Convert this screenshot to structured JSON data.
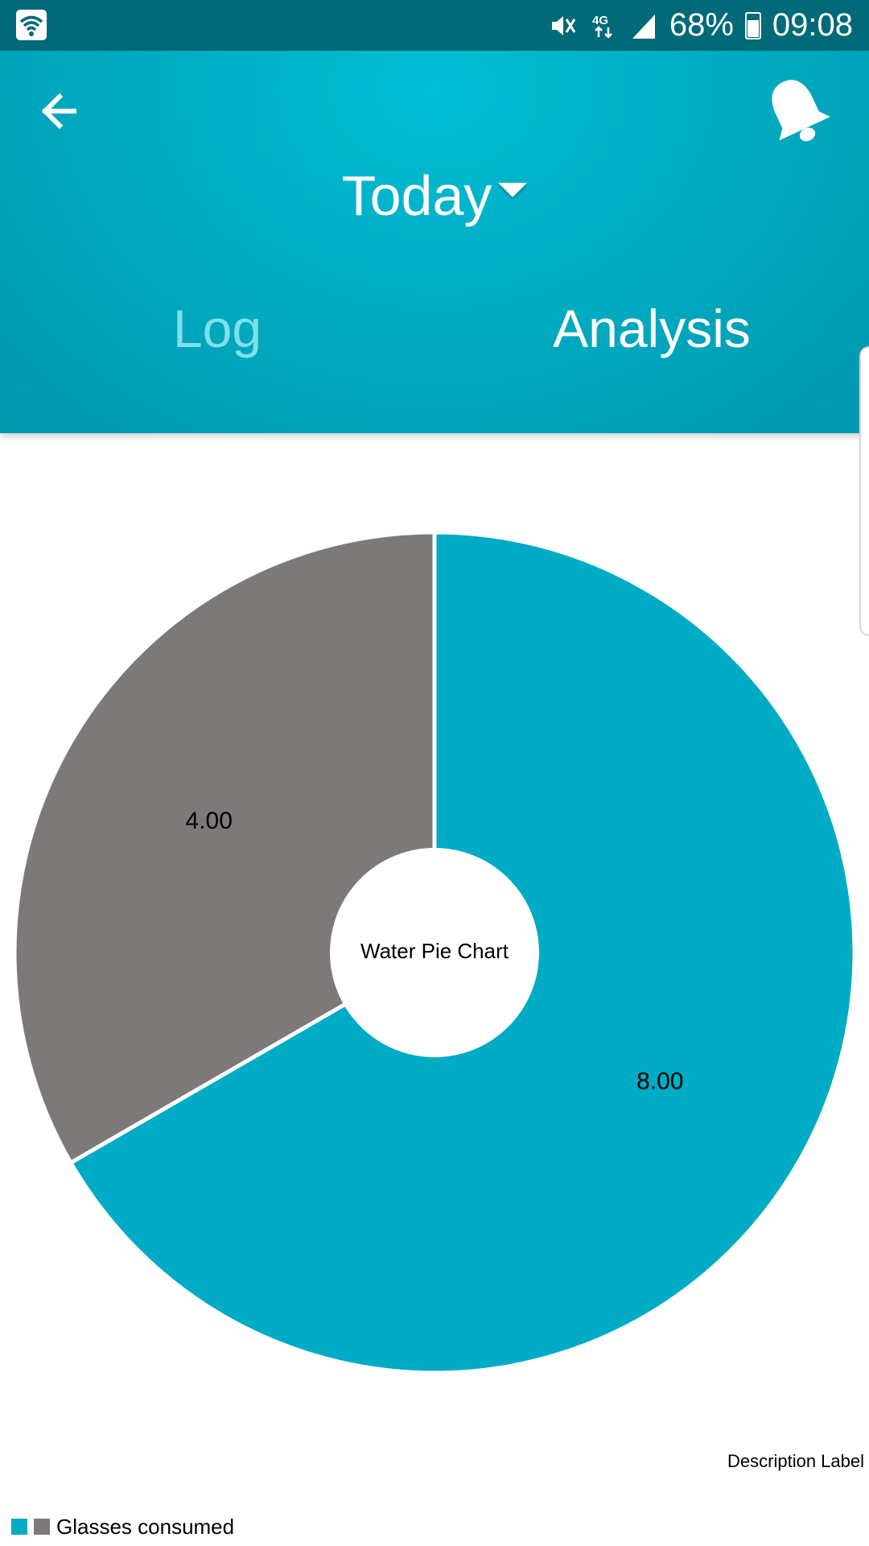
{
  "status_bar": {
    "battery": "68%",
    "time": "09:08",
    "network": "4G",
    "icons": [
      "wifi-icon",
      "mute-icon",
      "network-4g-icon",
      "signal-icon",
      "battery-icon"
    ]
  },
  "header": {
    "back_icon": "back-arrow-icon",
    "bell_icon": "bell-icon",
    "date_range": "Today",
    "tabs": [
      {
        "label": "Log",
        "active": false
      },
      {
        "label": "Analysis",
        "active": true
      }
    ],
    "colors": {
      "primary": "#00b3c9",
      "status_bar": "#006a78",
      "inactive_tab": "#7fdfea"
    }
  },
  "chart_data": {
    "type": "pie",
    "center_text": "Water Pie Chart",
    "description": "Description Label",
    "slices": [
      {
        "value": 8.0,
        "label": "8.00",
        "color": "#00abc5"
      },
      {
        "value": 4.0,
        "label": "4.00",
        "color": "#7d7978"
      }
    ],
    "legend": {
      "label": "Glasses consumed",
      "colors": [
        "#00abc5",
        "#7d7978"
      ],
      "placement": "bottom-left"
    }
  }
}
